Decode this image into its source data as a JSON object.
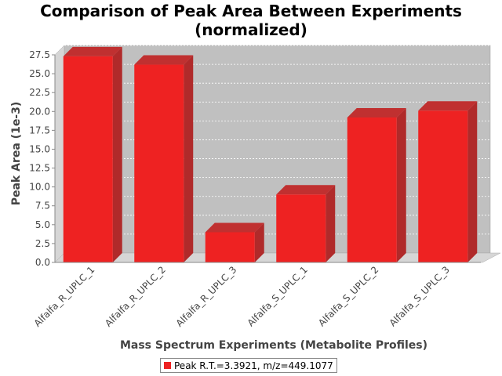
{
  "chart_data": {
    "type": "bar",
    "title": "Comparison of Peak Area Between Experiments (normalized)",
    "title_lines": [
      "Comparison of Peak Area Between Experiments",
      "(normalized)"
    ],
    "xlabel": "Mass Spectrum Experiments (Metabolite Profiles)",
    "ylabel": "Peak Area (1e-3)",
    "categories": [
      "Alfalfa_R_UPLC_1",
      "Alfalfa_R_UPLC_2",
      "Alfalfa_R_UPLC_3",
      "Alfalfa_S_UPLC_1",
      "Alfalfa_S_UPLC_2",
      "Alfalfa_S_UPLC_3"
    ],
    "series": [
      {
        "name": "Peak R.T.=3.3921, m/z=449.1077",
        "color": "#ee2222",
        "values": [
          27.3,
          26.2,
          4.0,
          9.0,
          19.2,
          20.1
        ]
      }
    ],
    "ylim": [
      0,
      27.5
    ],
    "yticks": [
      "0.0",
      "2.5",
      "5.0",
      "7.5",
      "10.0",
      "12.5",
      "15.0",
      "17.5",
      "20.0",
      "22.5",
      "25.0",
      "27.5"
    ],
    "grid": true,
    "legend_position": "bottom",
    "plot_background": "#c0c0c0"
  }
}
